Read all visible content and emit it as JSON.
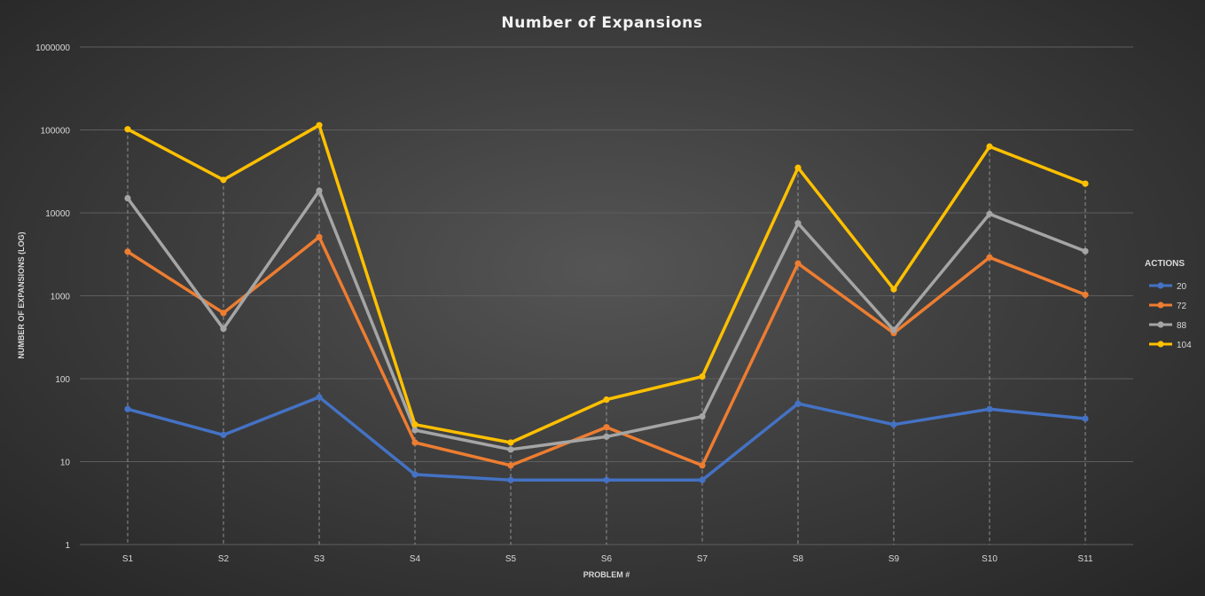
{
  "chart_data": {
    "type": "line",
    "title": "Number of Expansions",
    "xlabel": "PROBLEM #",
    "ylabel": "NUMBER OF EXPANSIONS (LOG)",
    "yscale": "log",
    "ylim": [
      1,
      1000000
    ],
    "yticks": [
      "1",
      "10",
      "100",
      "1000",
      "10000",
      "100000",
      "1000000"
    ],
    "grid": true,
    "drop_lines": true,
    "legend_title": "ACTIONS",
    "legend_position": "right",
    "categories": [
      "S1",
      "S2",
      "S3",
      "S4",
      "S5",
      "S6",
      "S7",
      "S8",
      "S9",
      "S10",
      "S11"
    ],
    "series": [
      {
        "name": "20",
        "color": "#4472c4",
        "values": [
          43,
          21,
          60,
          7,
          6,
          6,
          6,
          50,
          28,
          43,
          33
        ]
      },
      {
        "name": "72",
        "color": "#ed7d31",
        "values": [
          3400,
          620,
          5100,
          17,
          9,
          26,
          9,
          2450,
          355,
          2900,
          1030
        ]
      },
      {
        "name": "88",
        "color": "#a5a5a5",
        "values": [
          15000,
          400,
          18500,
          24,
          14,
          20,
          35,
          7500,
          385,
          9700,
          3450
        ]
      },
      {
        "name": "104",
        "color": "#ffc000",
        "values": [
          102000,
          25000,
          114000,
          28,
          17,
          56,
          106,
          35000,
          1200,
          63000,
          22500
        ]
      }
    ]
  }
}
